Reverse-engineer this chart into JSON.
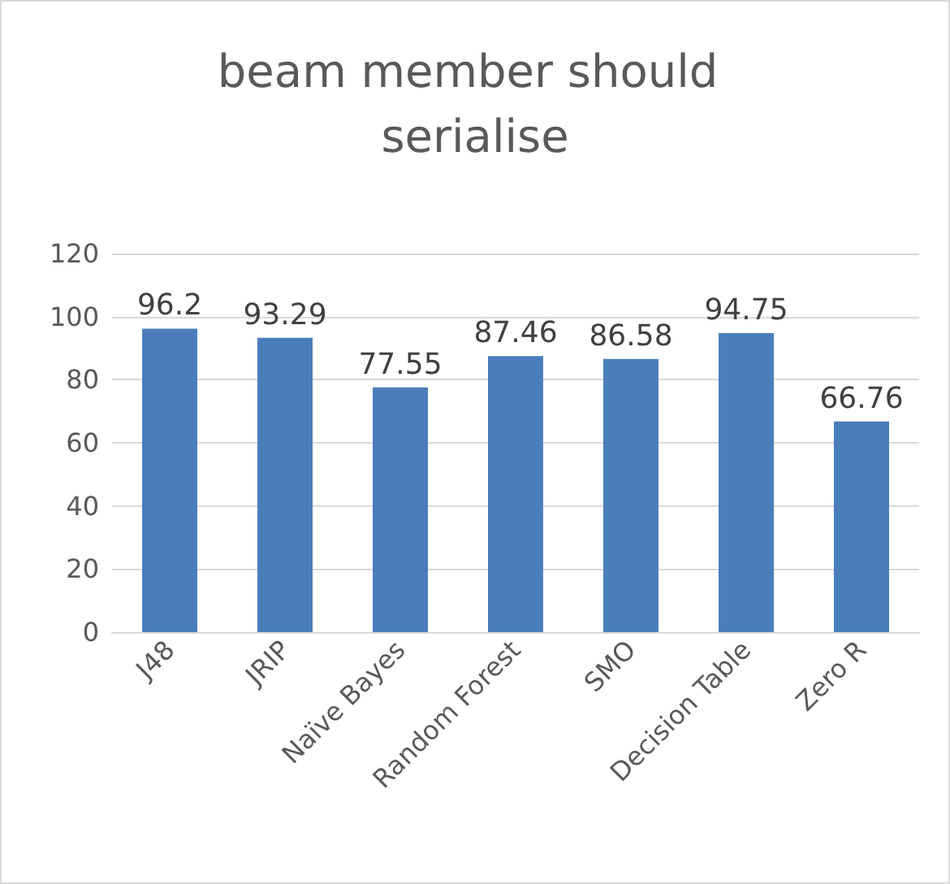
{
  "chart_data": {
    "type": "bar",
    "title": "beam member should serialise",
    "categories": [
      "J48",
      "JRIP",
      "Naïve Bayes",
      "Random Forest",
      "SMO",
      "Decision Table",
      "Zero R"
    ],
    "values": [
      96.2,
      93.29,
      77.55,
      87.46,
      86.58,
      94.75,
      66.76
    ],
    "color": "#4a7ebb",
    "ylim": [
      0,
      120
    ],
    "yticks": [
      0,
      20,
      40,
      60,
      80,
      100,
      120
    ],
    "grid": "y",
    "data_labels": true
  }
}
